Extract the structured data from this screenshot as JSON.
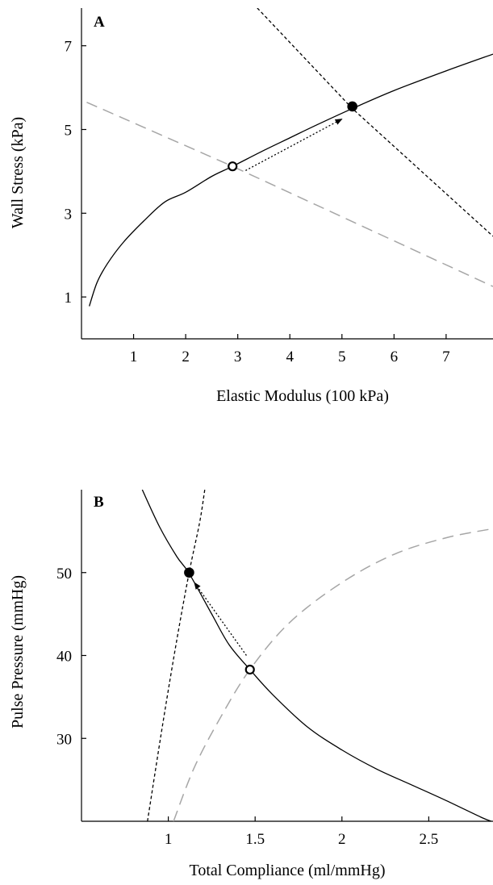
{
  "colors": {
    "curve": "#000000",
    "dashed_black": "#000000",
    "dashed_gray": "#a6a6a6",
    "arrow": "#000000"
  },
  "chart_data": [
    {
      "type": "line",
      "panel_label": "A",
      "xlabel": "Elastic Modulus (100 kPa)",
      "ylabel": "Wall Stress (kPa)",
      "xlim": [
        0,
        7.9
      ],
      "ylim": [
        0,
        7.9
      ],
      "xticks": [
        1,
        2,
        3,
        4,
        5,
        6,
        7
      ],
      "yticks": [
        1,
        3,
        5,
        7
      ],
      "series": [
        {
          "style": "solid-black",
          "x": [
            0.15,
            0.3,
            0.5,
            0.8,
            1.2,
            1.6,
            2.0,
            2.5,
            2.9,
            3.5,
            4.0,
            4.5,
            5.2,
            6.0,
            7.0,
            7.9
          ],
          "y": [
            0.78,
            1.35,
            1.8,
            2.3,
            2.82,
            3.27,
            3.5,
            3.88,
            4.12,
            4.5,
            4.8,
            5.1,
            5.5,
            5.93,
            6.4,
            6.8
          ]
        },
        {
          "style": "dashed-black",
          "x": [
            3.3,
            5.2,
            7.9
          ],
          "y": [
            8.0,
            5.5,
            2.45
          ]
        },
        {
          "style": "dashed-gray",
          "x": [
            0.1,
            2.9,
            7.9
          ],
          "y": [
            5.65,
            4.12,
            1.25
          ]
        }
      ],
      "points": [
        {
          "label": "open",
          "x": 2.9,
          "y": 4.12
        },
        {
          "label": "filled",
          "x": 5.2,
          "y": 5.55
        }
      ],
      "arrow": {
        "from": {
          "x": 3.15,
          "y": 4.02
        },
        "to": {
          "x": 5.0,
          "y": 5.25
        }
      }
    },
    {
      "type": "line",
      "panel_label": "B",
      "xlabel": "Total Compliance (ml/mmHg)",
      "ylabel": "Pulse Pressure (mmHg)",
      "xlim": [
        0.5,
        2.87
      ],
      "ylim": [
        20,
        60
      ],
      "xticks": [
        1,
        1.5,
        2,
        2.5
      ],
      "yticks": [
        30,
        40,
        50
      ],
      "series": [
        {
          "style": "solid-black",
          "x": [
            0.85,
            0.95,
            1.05,
            1.12,
            1.25,
            1.35,
            1.47,
            1.6,
            1.8,
            2.0,
            2.2,
            2.4,
            2.6,
            2.8,
            2.86
          ],
          "y": [
            60.0,
            55.5,
            51.9,
            49.9,
            45.0,
            41.3,
            38.3,
            35.3,
            31.4,
            28.6,
            26.3,
            24.4,
            22.5,
            20.5,
            20.0
          ]
        },
        {
          "style": "dashed-black",
          "x": [
            0.88,
            0.97,
            1.05,
            1.12,
            1.18,
            1.21
          ],
          "y": [
            20.0,
            32.0,
            42.0,
            50.0,
            56.0,
            60.0
          ]
        },
        {
          "style": "dashed-gray",
          "x": [
            1.03,
            1.15,
            1.3,
            1.47,
            1.7,
            2.0,
            2.3,
            2.6,
            2.87
          ],
          "y": [
            20.0,
            26.5,
            32.5,
            38.3,
            44.0,
            48.8,
            52.2,
            54.2,
            55.3
          ]
        }
      ],
      "points": [
        {
          "label": "filled",
          "x": 1.12,
          "y": 50.0
        },
        {
          "label": "open",
          "x": 1.47,
          "y": 38.3
        }
      ],
      "arrow": {
        "from": {
          "x": 1.45,
          "y": 40.0
        },
        "to": {
          "x": 1.15,
          "y": 48.8
        }
      }
    }
  ]
}
